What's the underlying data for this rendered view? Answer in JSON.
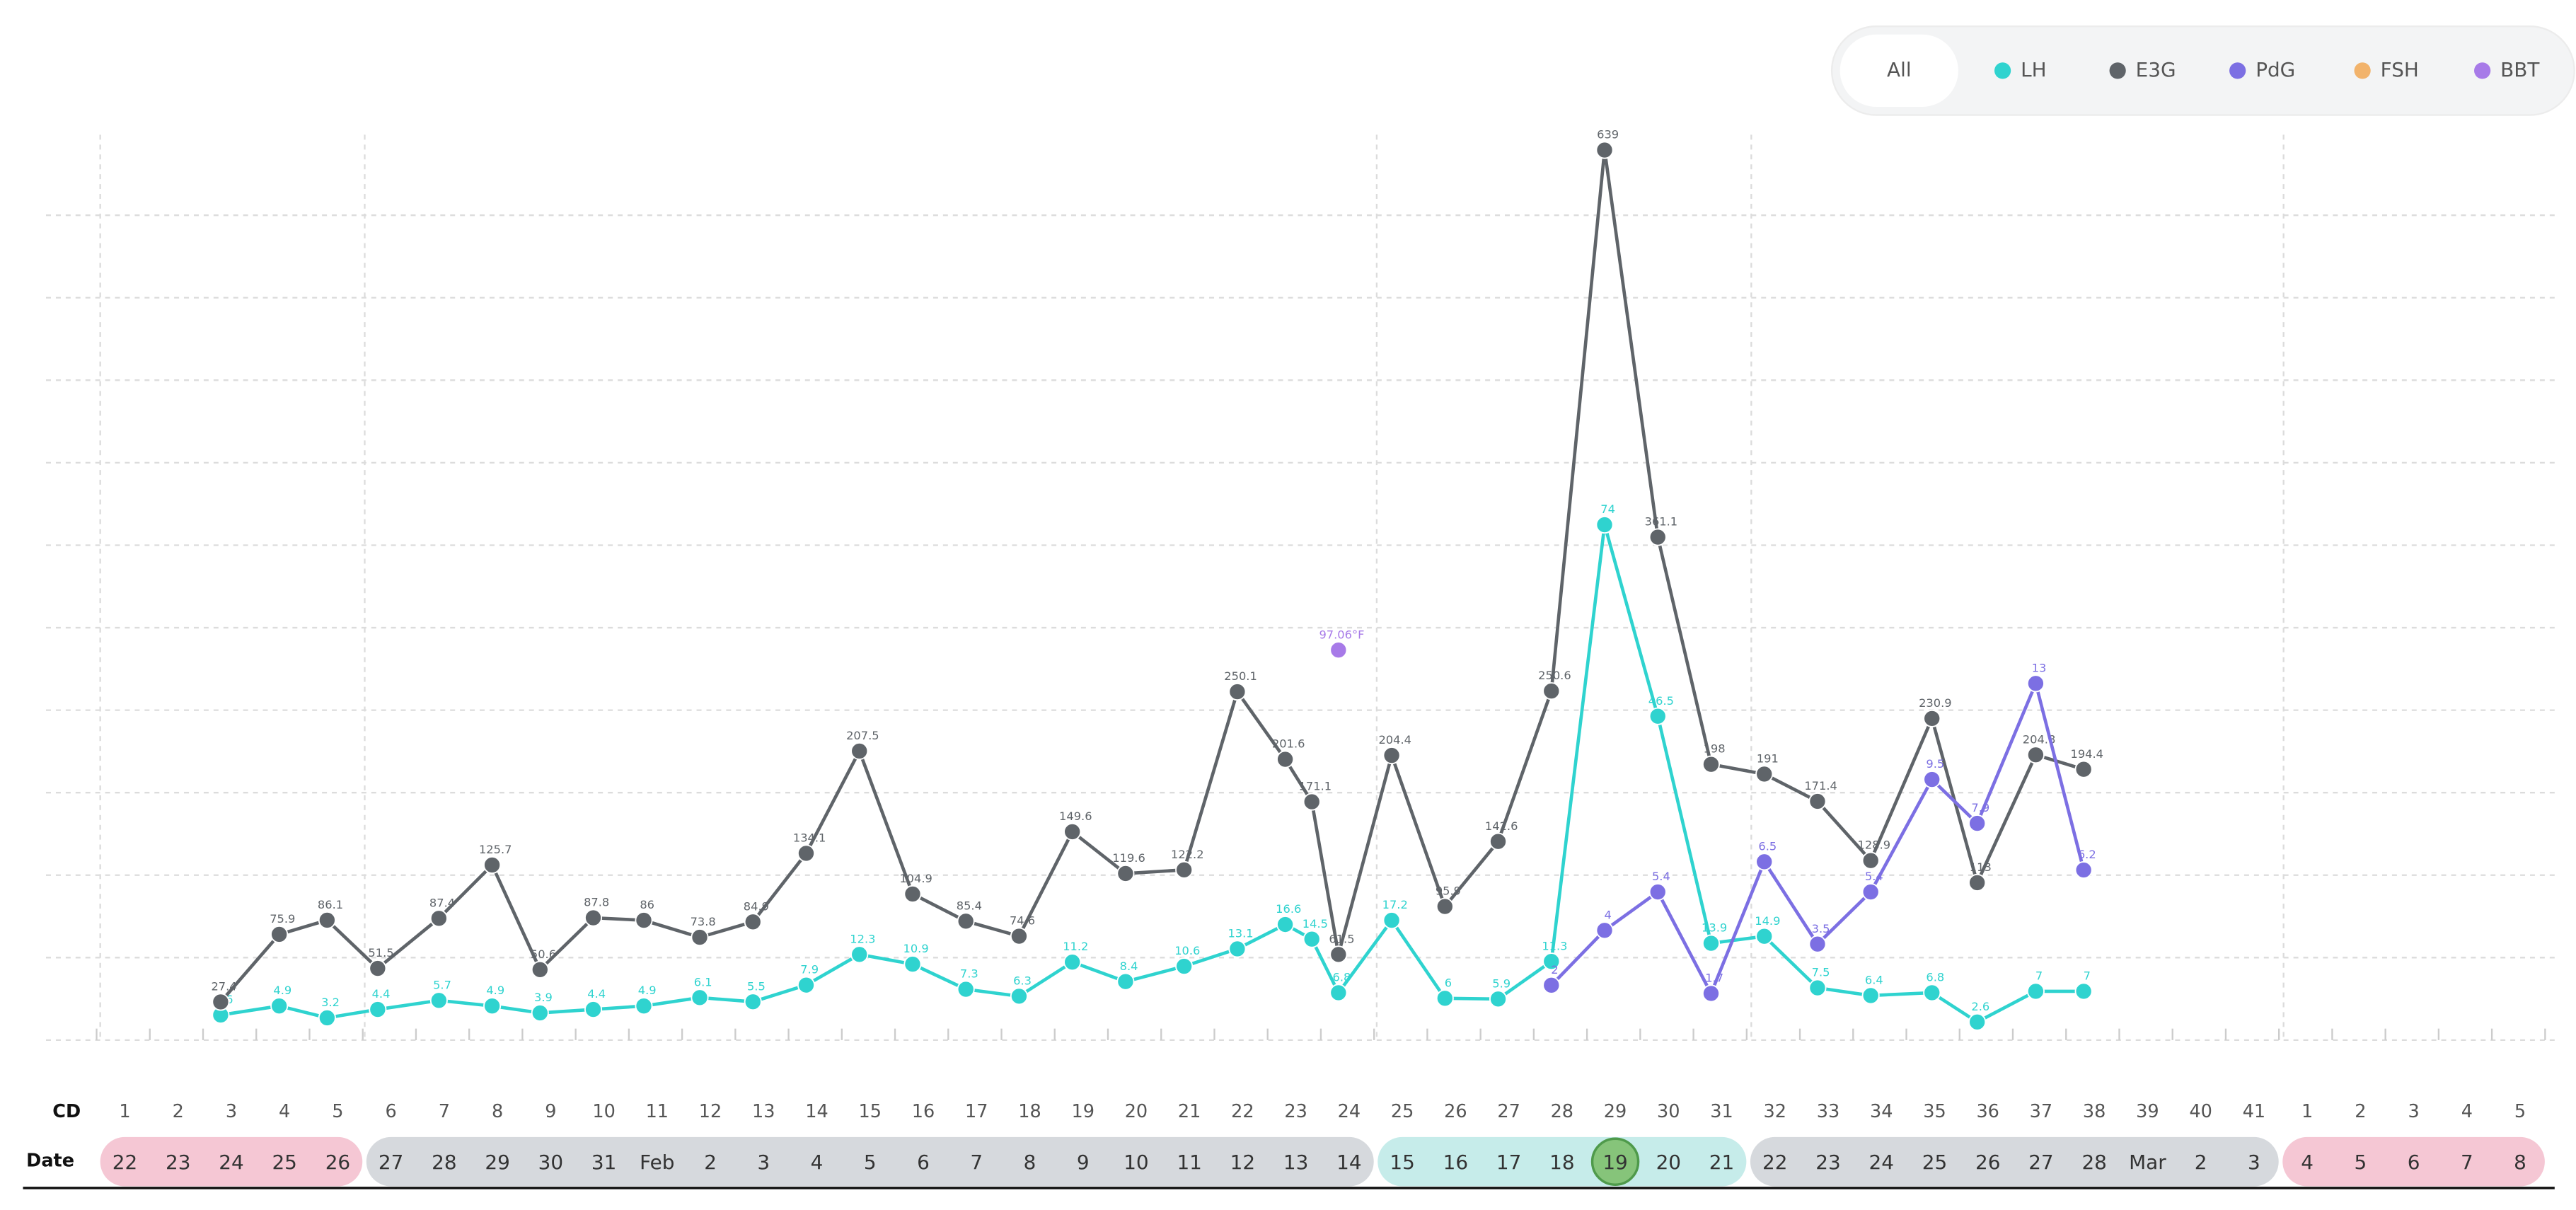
{
  "chart_data": {
    "type": "line",
    "legend_all": "All",
    "cd_label": "CD",
    "date_label": "Date",
    "cycle_days": [
      1,
      2,
      3,
      4,
      5,
      6,
      7,
      8,
      9,
      10,
      11,
      12,
      13,
      14,
      15,
      16,
      17,
      18,
      19,
      20,
      21,
      22,
      23,
      24,
      25,
      26,
      27,
      28,
      29,
      30,
      31,
      32,
      33,
      34,
      35,
      36,
      37,
      38,
      39,
      40,
      41,
      1,
      2,
      3,
      4,
      5
    ],
    "dates": [
      22,
      23,
      24,
      25,
      26,
      27,
      28,
      29,
      30,
      31,
      "Feb",
      2,
      3,
      4,
      5,
      6,
      7,
      8,
      9,
      10,
      11,
      12,
      13,
      14,
      15,
      16,
      17,
      18,
      19,
      20,
      21,
      22,
      23,
      24,
      25,
      26,
      27,
      28,
      "Mar",
      2,
      3,
      4,
      5,
      6,
      7,
      8
    ],
    "xlim": [
      1,
      46
    ],
    "series": [
      {
        "name": "LH",
        "color": "#2fd3cf",
        "ylim": [
          0,
          130
        ],
        "x": [
          2.8,
          3.9,
          4.8,
          5.75,
          6.9,
          7.9,
          8.8,
          9.8,
          10.75,
          11.8,
          12.8,
          13.8,
          14.8,
          15.8,
          16.8,
          17.8,
          18.8,
          19.8,
          20.9,
          21.9,
          22.8,
          23.3,
          23.8,
          24.8,
          25.8,
          26.8,
          27.8,
          28.8,
          29.8,
          30.8,
          31.8,
          32.8,
          33.8,
          34.95,
          35.8,
          36.9,
          37.8
        ],
        "values": [
          3.6,
          4.9,
          3.2,
          4.4,
          5.7,
          4.9,
          3.9,
          4.4,
          4.9,
          6.1,
          5.5,
          7.9,
          12.3,
          10.9,
          7.3,
          6.3,
          11.2,
          8.4,
          10.6,
          13.1,
          16.6,
          14.5,
          6.8,
          17.2,
          6,
          5.9,
          11.3,
          74,
          46.5,
          13.9,
          14.9,
          7.5,
          6.4,
          6.8,
          2.6,
          7,
          7
        ]
      },
      {
        "name": "E3G",
        "color": "#5f6469",
        "ylim": [
          0,
          650
        ],
        "x": [
          2.8,
          3.9,
          4.8,
          5.75,
          6.9,
          7.9,
          8.8,
          9.8,
          10.75,
          11.8,
          12.8,
          13.8,
          14.8,
          15.8,
          16.8,
          17.8,
          18.8,
          19.8,
          20.9,
          21.9,
          22.8,
          23.3,
          23.8,
          24.8,
          25.8,
          26.8,
          27.8,
          28.8,
          29.8,
          30.8,
          31.8,
          32.8,
          33.8,
          34.95,
          35.8,
          36.9,
          37.8
        ],
        "values": [
          27.4,
          75.9,
          86.1,
          51.5,
          87.4,
          125.7,
          50.6,
          87.8,
          86,
          73.8,
          84.9,
          134.1,
          207.5,
          104.9,
          85.4,
          74.6,
          149.6,
          119.6,
          122.2,
          250.1,
          201.6,
          171.1,
          61.5,
          204.4,
          95.9,
          142.6,
          250.6,
          639,
          361.1,
          198,
          191,
          171.4,
          128.9,
          230.9,
          113,
          204.8,
          194.4
        ]
      },
      {
        "name": "PdG",
        "color": "#7c6fe3",
        "ylim": [
          0,
          33
        ],
        "x": [
          27.8,
          28.8,
          29.8,
          30.8,
          31.8,
          32.8,
          33.8,
          34.95,
          35.8,
          36.9,
          37.8
        ],
        "values": [
          2,
          4,
          5.4,
          1.7,
          6.5,
          3.5,
          5.4,
          9.5,
          7.9,
          13,
          6.2
        ]
      },
      {
        "name": "FSH",
        "color": "#f2b36b",
        "ylim": [
          0,
          100
        ],
        "x": [],
        "values": []
      },
      {
        "name": "BBT",
        "color": "#a77ae8",
        "ylim": [
          96.5,
          97.8
        ],
        "x": [
          23.8
        ],
        "values": [
          97.06
        ],
        "value_labels": [
          "97.06°F"
        ]
      }
    ]
  }
}
